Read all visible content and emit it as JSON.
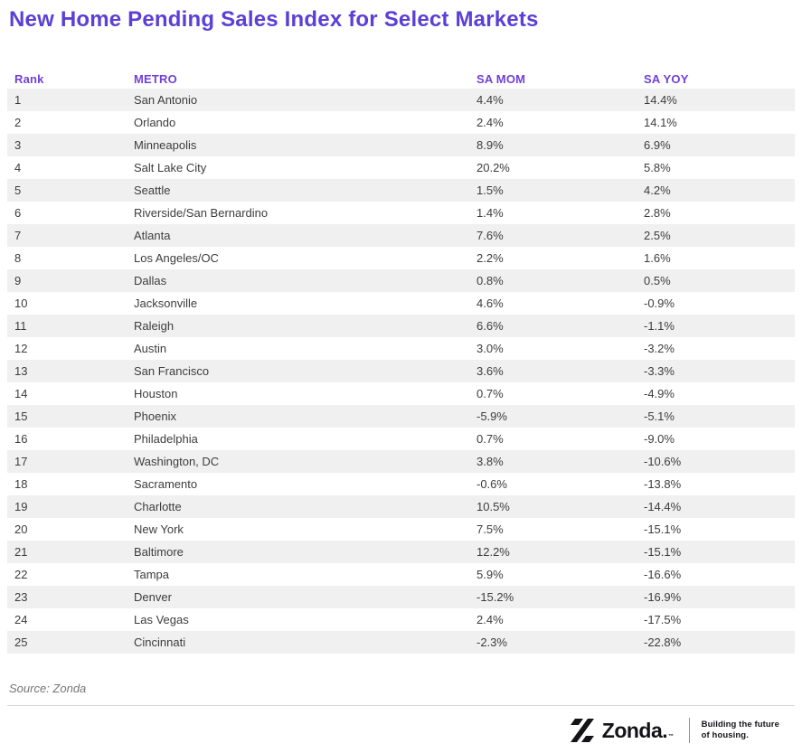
{
  "chart_data": {
    "type": "table",
    "title": "New Home Pending Sales Index for Select Markets",
    "columns": [
      "Rank",
      "METRO",
      "SA MOM",
      "SA YOY"
    ],
    "rows": [
      [
        "1",
        "San Antonio",
        "4.4%",
        "14.4%"
      ],
      [
        "2",
        "Orlando",
        "2.4%",
        "14.1%"
      ],
      [
        "3",
        "Minneapolis",
        "8.9%",
        "6.9%"
      ],
      [
        "4",
        "Salt Lake City",
        "20.2%",
        "5.8%"
      ],
      [
        "5",
        "Seattle",
        "1.5%",
        "4.2%"
      ],
      [
        "6",
        "Riverside/San Bernardino",
        "1.4%",
        "2.8%"
      ],
      [
        "7",
        "Atlanta",
        "7.6%",
        "2.5%"
      ],
      [
        "8",
        "Los Angeles/OC",
        "2.2%",
        "1.6%"
      ],
      [
        "9",
        "Dallas",
        "0.8%",
        "0.5%"
      ],
      [
        "10",
        "Jacksonville",
        "4.6%",
        "-0.9%"
      ],
      [
        "11",
        "Raleigh",
        "6.6%",
        "-1.1%"
      ],
      [
        "12",
        "Austin",
        "3.0%",
        "-3.2%"
      ],
      [
        "13",
        "San Francisco",
        "3.6%",
        "-3.3%"
      ],
      [
        "14",
        "Houston",
        "0.7%",
        "-4.9%"
      ],
      [
        "15",
        "Phoenix",
        "-5.9%",
        "-5.1%"
      ],
      [
        "16",
        "Philadelphia",
        "0.7%",
        "-9.0%"
      ],
      [
        "17",
        "Washington, DC",
        "3.8%",
        "-10.6%"
      ],
      [
        "18",
        "Sacramento",
        "-0.6%",
        "-13.8%"
      ],
      [
        "19",
        "Charlotte",
        "10.5%",
        "-14.4%"
      ],
      [
        "20",
        "New York",
        "7.5%",
        "-15.1%"
      ],
      [
        "21",
        "Baltimore",
        "12.2%",
        "-15.1%"
      ],
      [
        "22",
        "Tampa",
        "5.9%",
        "-16.6%"
      ],
      [
        "23",
        "Denver",
        "-15.2%",
        "-16.9%"
      ],
      [
        "24",
        "Las Vegas",
        "2.4%",
        "-17.5%"
      ],
      [
        "25",
        "Cincinnati",
        "-2.3%",
        "-22.8%"
      ]
    ],
    "source": "Source: Zonda",
    "legend_position": "none",
    "grid": "row-striping"
  },
  "brand": {
    "mark_icon": "zonda-slash-icon",
    "wordmark": "Zonda.",
    "tm": "™",
    "tagline_line1": "Building the future",
    "tagline_line2": "of housing."
  },
  "colors": {
    "title": "#5b3fd6",
    "header": "#7140d6",
    "row_alt": "#f0f0f0",
    "text": "#3d3d3d",
    "muted": "#757575",
    "brand_dark": "#141418"
  }
}
